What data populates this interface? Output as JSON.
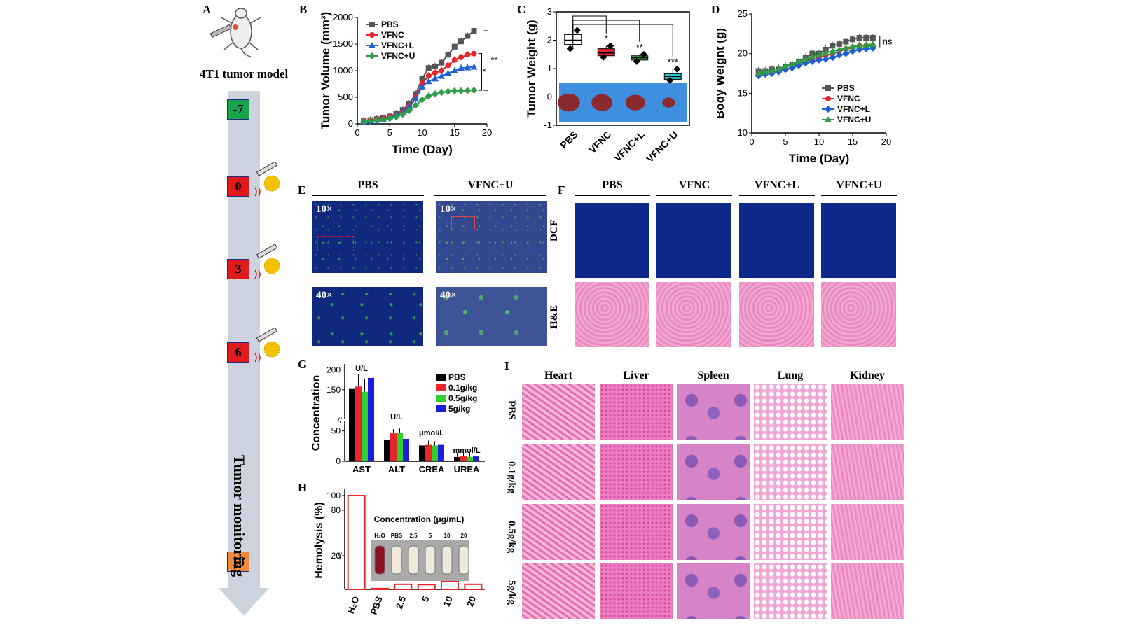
{
  "panelA": {
    "label": "A",
    "title": "4T1 tumor model",
    "vertical_label": "Tumor monitoring",
    "timepoints": [
      {
        "text": "-7",
        "color": "#19a34a"
      },
      {
        "text": "0",
        "color": "#e01b1b"
      },
      {
        "text": "3",
        "color": "#e01b1b"
      },
      {
        "text": "6",
        "color": "#e01b1b"
      },
      {
        "text": "18",
        "color": "#f08a3c"
      }
    ]
  },
  "panelE": {
    "label": "E",
    "cols": [
      "PBS",
      "VFNC+U"
    ],
    "mag_low": "10×",
    "mag_high": "40×"
  },
  "panelF": {
    "label": "F",
    "cols": [
      "PBS",
      "VFNC",
      "VFNC+L",
      "VFNC+U"
    ],
    "rows": [
      "DCF",
      "H&E"
    ]
  },
  "panelI": {
    "label": "I",
    "cols": [
      "Heart",
      "Liver",
      "Spleen",
      "Lung",
      "Kidney"
    ],
    "rows": [
      "PBS",
      "0.1g/kg",
      "0.5g/kg",
      "5g/kg"
    ]
  },
  "chart_data": [
    {
      "id": "B",
      "panel_label": "B",
      "type": "line",
      "xlabel": "Time (Day)",
      "ylabel": "Tumor Volume (mm³)",
      "xlim": [
        0,
        20
      ],
      "ylim": [
        0,
        2000
      ],
      "xticks": [
        0,
        5,
        10,
        15,
        20
      ],
      "yticks": [
        0,
        500,
        1000,
        1500,
        2000
      ],
      "x": [
        1,
        2,
        3,
        4,
        5,
        6,
        7,
        8,
        9,
        10,
        11,
        12,
        13,
        14,
        15,
        16,
        17,
        18
      ],
      "series": [
        {
          "name": "PBS",
          "color": "#555555",
          "marker": "square",
          "values": [
            60,
            70,
            90,
            110,
            140,
            190,
            260,
            380,
            560,
            850,
            1050,
            1080,
            1150,
            1300,
            1450,
            1550,
            1650,
            1750
          ]
        },
        {
          "name": "VFNC",
          "color": "#e8262a",
          "marker": "circle",
          "values": [
            55,
            65,
            80,
            100,
            130,
            170,
            230,
            330,
            500,
            760,
            900,
            960,
            1000,
            1100,
            1200,
            1250,
            1300,
            1320
          ]
        },
        {
          "name": "VFNC+L",
          "color": "#1f5fd6",
          "marker": "triangle",
          "values": [
            50,
            60,
            75,
            95,
            120,
            160,
            220,
            310,
            470,
            700,
            800,
            850,
            900,
            950,
            1000,
            1050,
            1060,
            1070
          ]
        },
        {
          "name": "VFNC+U",
          "color": "#2e9d4a",
          "marker": "diamond",
          "values": [
            45,
            55,
            65,
            80,
            100,
            130,
            180,
            250,
            350,
            450,
            520,
            560,
            590,
            610,
            620,
            620,
            625,
            630
          ]
        }
      ],
      "annotations": [
        "**",
        "*"
      ]
    },
    {
      "id": "C",
      "panel_label": "C",
      "type": "box",
      "ylabel": "Tumor Weight (g)",
      "ylim": [
        -1,
        3
      ],
      "yticks": [
        -1,
        0,
        1,
        2,
        3
      ],
      "categories": [
        "PBS",
        "VFNC",
        "VFNC+L",
        "VFNC+U"
      ],
      "colors": [
        "#ffffff",
        "#e8262a",
        "#33c24a",
        "#28c3d0"
      ],
      "medians": [
        2.0,
        1.55,
        1.38,
        0.72
      ],
      "q1": [
        1.85,
        1.45,
        1.3,
        0.62
      ],
      "q3": [
        2.2,
        1.7,
        1.45,
        0.82
      ],
      "whisker_low": [
        1.7,
        1.4,
        1.25,
        0.58
      ],
      "whisker_high": [
        2.35,
        1.8,
        1.5,
        0.98
      ],
      "significance": [
        "*",
        "**",
        "***"
      ]
    },
    {
      "id": "D",
      "panel_label": "D",
      "type": "line",
      "xlabel": "Time (Day)",
      "ylabel": "Body Weight (g)",
      "xlim": [
        0,
        20
      ],
      "ylim": [
        10,
        25
      ],
      "xticks": [
        0,
        5,
        10,
        15,
        20
      ],
      "yticks": [
        10,
        15,
        20,
        25
      ],
      "x": [
        1,
        2,
        3,
        4,
        5,
        6,
        7,
        8,
        9,
        10,
        11,
        12,
        13,
        14,
        15,
        16,
        17,
        18
      ],
      "series": [
        {
          "name": "PBS",
          "color": "#555555",
          "marker": "square",
          "values": [
            17.8,
            17.8,
            18,
            18,
            18.3,
            18.6,
            19,
            19.5,
            20,
            20,
            20.5,
            21,
            21.2,
            21.5,
            21.8,
            22,
            22,
            22
          ]
        },
        {
          "name": "VFNC",
          "color": "#e8262a",
          "marker": "circle",
          "values": [
            17.5,
            17.5,
            17.6,
            17.8,
            18,
            18.3,
            18.8,
            19,
            19.3,
            19.5,
            19.8,
            20,
            20.3,
            20.6,
            20.8,
            21,
            21,
            21
          ]
        },
        {
          "name": "VFNC+L",
          "color": "#1f5fd6",
          "marker": "diamond",
          "values": [
            17.2,
            17.4,
            17.5,
            17.7,
            18,
            18.2,
            18.5,
            18.8,
            19,
            19.2,
            19.3,
            19.5,
            19.8,
            20,
            20.3,
            20.5,
            20.6,
            20.7
          ]
        },
        {
          "name": "VFNC+U",
          "color": "#2e9d4a",
          "marker": "triangle",
          "values": [
            17.6,
            17.7,
            17.9,
            18.1,
            18.4,
            18.7,
            19,
            19.3,
            19.6,
            19.9,
            20.1,
            20.3,
            20.5,
            20.7,
            20.9,
            21,
            21.1,
            21.2
          ]
        }
      ],
      "annotations": [
        "ns"
      ]
    },
    {
      "id": "G",
      "panel_label": "G",
      "type": "bar",
      "ylabel": "Concentration",
      "categories": [
        "AST",
        "ALT",
        "CREA",
        "UREA"
      ],
      "units": [
        "U/L",
        "U/L",
        "μmol/L",
        "mmol/L"
      ],
      "yticks_low": [
        0,
        50
      ],
      "yticks_high": [
        150,
        200
      ],
      "series": [
        {
          "name": "PBS",
          "color": "#000000",
          "values": [
            152,
            35,
            26,
            7
          ]
        },
        {
          "name": "0.1g/kg",
          "color": "#e8262a",
          "values": [
            158,
            46,
            27,
            8
          ]
        },
        {
          "name": "0.5g/kg",
          "color": "#2fd12f",
          "values": [
            145,
            47,
            26,
            7
          ]
        },
        {
          "name": "5g/kg",
          "color": "#1d1de0",
          "values": [
            180,
            37,
            27,
            8
          ]
        }
      ]
    },
    {
      "id": "H",
      "panel_label": "H",
      "type": "bar",
      "ylabel": "Hemolysis (%)",
      "categories": [
        "H₂O",
        "PBS",
        "2.5",
        "5",
        "10",
        "20"
      ],
      "values": [
        100,
        0.5,
        3,
        2.8,
        5,
        3
      ],
      "yticks": [
        20,
        80,
        100
      ],
      "inset_title": "Concentration (μg/mL)",
      "inset_labels": [
        "H₂O",
        "PBS",
        "2.5",
        "5",
        "10",
        "20"
      ],
      "color": "#e8262a"
    }
  ]
}
